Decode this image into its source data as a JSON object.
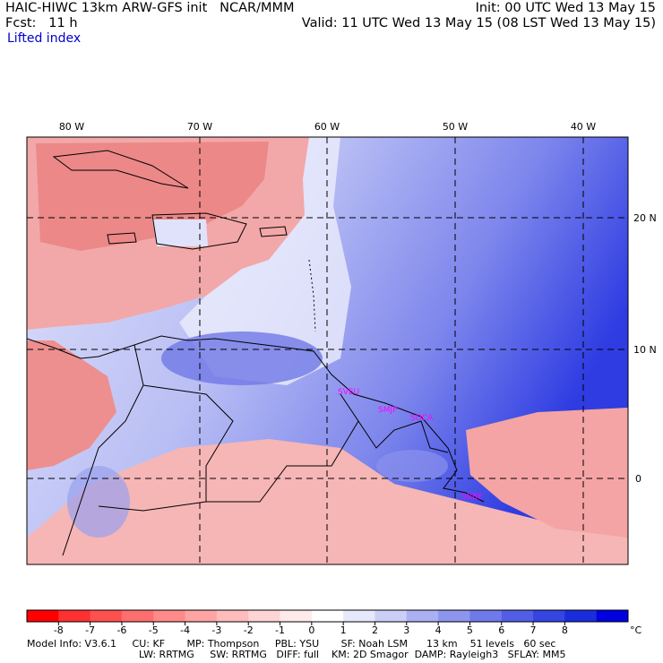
{
  "header": {
    "model_title": "HAIC-HIWC 13km ARW-GFS init   NCAR/MMM",
    "forecast_label": "Fcst:   11 h",
    "init_time": "Init: 00 UTC Wed 13 May 15",
    "valid_time": "Valid: 11 UTC Wed 13 May 15 (08 LST Wed 13 May 15)",
    "field_name": "Lifted index"
  },
  "map": {
    "lon_labels": [
      "80 W",
      "70 W",
      "60 W",
      "50 W",
      "40 W"
    ],
    "lat_labels": [
      "20 N",
      "10 N",
      "0"
    ],
    "station_labels": [
      "SVEU",
      "SMJP",
      "SOCA",
      "SBBE"
    ],
    "colors": {
      "negative": "#f4a0a0",
      "strong_negative": "#e05050",
      "positive_light": "#c8ccf4",
      "positive_mid": "#8890ee",
      "positive_strong": "#3340e0",
      "station": "#ff00ff"
    }
  },
  "colorbar": {
    "ticks": [
      "-8",
      "-7",
      "-6",
      "-5",
      "-4",
      "-3",
      "-2",
      "-1",
      "0",
      "1",
      "2",
      "3",
      "4",
      "5",
      "6",
      "7",
      "8"
    ],
    "unit": "°C",
    "colors": [
      "#ff0000",
      "#ff3030",
      "#ff5050",
      "#ff6e6e",
      "#ff8a8a",
      "#ffa4a4",
      "#ffbcbc",
      "#ffd4d4",
      "#ffeaea",
      "#ffffff",
      "#e6e8fb",
      "#cbcff7",
      "#aab0f2",
      "#8d95ee",
      "#6f79ea",
      "#525ee6",
      "#3545e2",
      "#1a2ddd",
      "#0000e0"
    ]
  },
  "footer": {
    "line1": "Model Info: V3.6.1     CU: KF       MP: Thompson     PBL: YSU       SF: Noah LSM      13 km    51 levels   60 sec",
    "line2": "LW: RRTMG     SW: RRTMG   DIFF: full    KM: 2D Smagor  DAMP: Rayleigh3   SFLAY: MM5"
  }
}
